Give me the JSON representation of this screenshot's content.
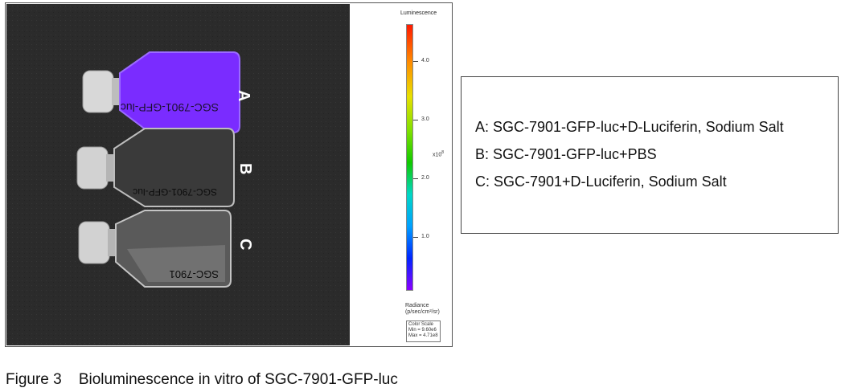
{
  "colors": {
    "photo_background": "#2b2b2b",
    "signal_purple": "#7a2cff",
    "frame_border": "#555555"
  },
  "image": {
    "flask_labels": [
      "A",
      "B",
      "C"
    ],
    "flask_handwriting": [
      "SGC-7901-GFP-luc",
      "SGC-7901-GFP-luc",
      "SGC-7901"
    ]
  },
  "color_scale": {
    "title": "Luminescence",
    "tick_labels": [
      "4.0",
      "3.0",
      "2.0",
      "1.0"
    ],
    "exponent": "x10",
    "exponent_power": "8",
    "radiance_label_line1": "Radiance",
    "radiance_label_line2": "(p/sec/cm²/sr)",
    "box_title": "Color Scale",
    "box_min": "Min = 9.60e6",
    "box_max": "Max = 4.71e8"
  },
  "legend": {
    "lines": [
      "A: SGC-7901-GFP-luc+D-Luciferin, Sodium Salt",
      "B: SGC-7901-GFP-luc+PBS",
      "C: SGC-7901+D-Luciferin, Sodium Salt"
    ]
  },
  "caption": "Figure 3    Bioluminescence in vitro of SGC-7901-GFP-luc"
}
